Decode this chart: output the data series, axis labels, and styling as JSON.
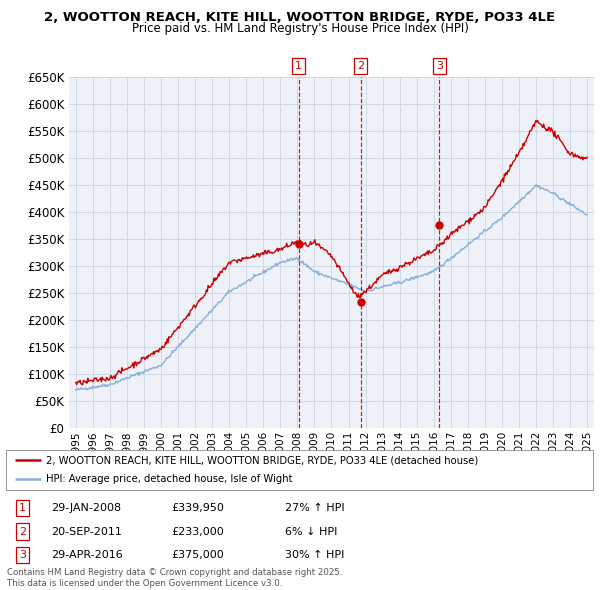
{
  "title": "2, WOOTTON REACH, KITE HILL, WOOTTON BRIDGE, RYDE, PO33 4LE",
  "subtitle": "Price paid vs. HM Land Registry's House Price Index (HPI)",
  "background_color": "#ffffff",
  "grid_color": "#d0d8e8",
  "plot_bg": "#eef2f8",
  "red_color": "#cc0000",
  "blue_color": "#8ab0d8",
  "transaction_dates": [
    2008.08,
    2011.72,
    2016.33
  ],
  "transaction_labels": [
    "1",
    "2",
    "3"
  ],
  "transaction_prices": [
    339950,
    233000,
    375000
  ],
  "transaction_info": [
    {
      "num": "1",
      "date": "29-JAN-2008",
      "price": "£339,950",
      "hpi": "27% ↑ HPI"
    },
    {
      "num": "2",
      "date": "20-SEP-2011",
      "price": "£233,000",
      "hpi": "6% ↓ HPI"
    },
    {
      "num": "3",
      "date": "29-APR-2016",
      "price": "£375,000",
      "hpi": "30% ↑ HPI"
    }
  ],
  "legend_line1": "2, WOOTTON REACH, KITE HILL, WOOTTON BRIDGE, RYDE, PO33 4LE (detached house)",
  "legend_line2": "HPI: Average price, detached house, Isle of Wight",
  "footer": "Contains HM Land Registry data © Crown copyright and database right 2025.\nThis data is licensed under the Open Government Licence v3.0.",
  "ylim": [
    0,
    650000
  ],
  "yticks": [
    0,
    50000,
    100000,
    150000,
    200000,
    250000,
    300000,
    350000,
    400000,
    450000,
    500000,
    550000,
    600000,
    650000
  ],
  "xlim_start": 1994.6,
  "xlim_end": 2025.4
}
